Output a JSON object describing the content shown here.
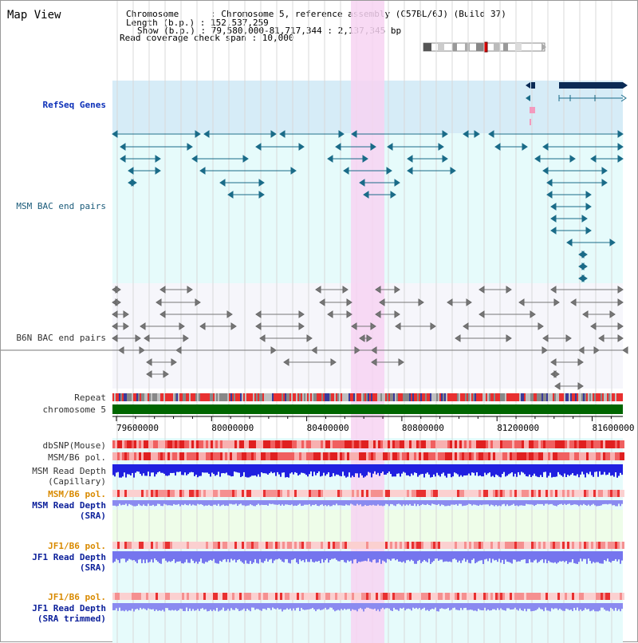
{
  "title": "Map View",
  "header": {
    "chromosome_line": "Chromosome      : Chromosome 5, reference assembly (C57BL/6J) (Build 37)",
    "length_line": "Length (b.p.) : 152,537,259",
    "show_line": "Show (b.p.) : 79,580,000-81,717,344 : 2,137,345 bp",
    "coverage_line": "Read coverage check span : 10,000"
  },
  "tracks": {
    "refseq": "RefSeq Genes",
    "msm_bac": "MSM BAC end pairs",
    "b6n_bac": "B6N BAC end pairs",
    "repeat": "Repeat",
    "chromosome": "chromosome 5",
    "dbsnp": "dbSNP(Mouse)",
    "msm_b6_pol": "MSM/B6 pol.",
    "msm_read_depth_cap_1": "MSM Read Depth",
    "msm_read_depth_cap_2": "(Capillary)",
    "msm_b6_pol_2": "MSM/B6 pol.",
    "msm_read_depth_sra_1": "MSM Read Depth",
    "msm_read_depth_sra_2": "(SRA)",
    "jf1_b6_pol": "JF1/B6 pol.",
    "jf1_read_depth_1": "JF1 Read Depth",
    "jf1_read_depth_2": "(SRA)",
    "jf1_b6_pol_2": "JF1/B6 pol.",
    "jf1_read_depth_t1": "JF1 Read Depth",
    "jf1_read_depth_t2": "(SRA trimmed)"
  },
  "axis": {
    "ticks": [
      "79600000",
      "80000000",
      "80400000",
      "80800000",
      "81200000",
      "81600000"
    ]
  },
  "colors": {
    "highlight": "#f7d3f2",
    "refseq_bg": "#d6ecf7",
    "track_bg": "#e6fbfb",
    "gene_dark": "#0a2a55",
    "msm_feature": "#1a6b88",
    "b6n_feature": "#666666",
    "chromosome_bar": "#006600",
    "snp_red": "#e83030",
    "depth_blue": "#2020e0",
    "depth_light": "#8a8af0"
  }
}
